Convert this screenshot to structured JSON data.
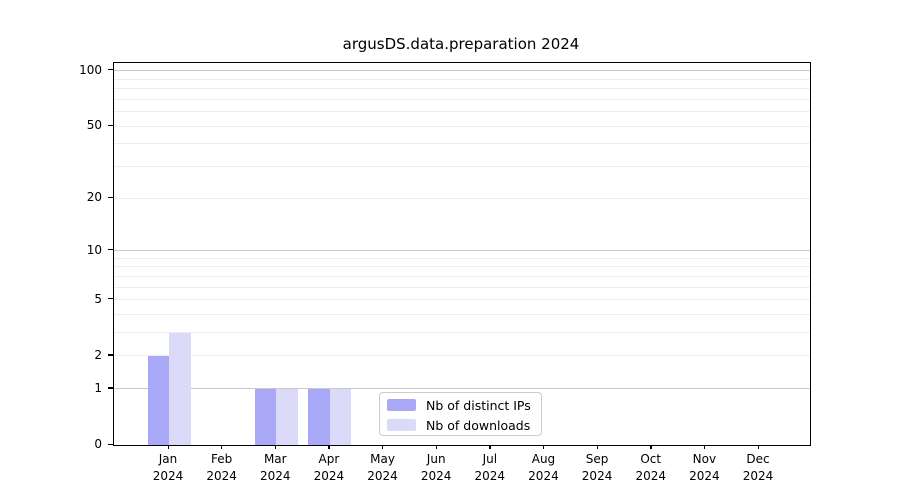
{
  "title": "argusDS.data.preparation 2024",
  "colors": {
    "series_ips": "#a9a9f8",
    "series_downloads": "#dbdbf9",
    "grid_major": "#c9c9c9",
    "grid_minor": "#ededed",
    "frame": "#000000",
    "legend_border": "#cccccc"
  },
  "chart_data": {
    "type": "bar",
    "title": "argusDS.data.preparation 2024",
    "x": [
      {
        "month": "Jan",
        "year": "2024"
      },
      {
        "month": "Feb",
        "year": "2024"
      },
      {
        "month": "Mar",
        "year": "2024"
      },
      {
        "month": "Apr",
        "year": "2024"
      },
      {
        "month": "May",
        "year": "2024"
      },
      {
        "month": "Jun",
        "year": "2024"
      },
      {
        "month": "Jul",
        "year": "2024"
      },
      {
        "month": "Aug",
        "year": "2024"
      },
      {
        "month": "Sep",
        "year": "2024"
      },
      {
        "month": "Oct",
        "year": "2024"
      },
      {
        "month": "Nov",
        "year": "2024"
      },
      {
        "month": "Dec",
        "year": "2024"
      }
    ],
    "series": [
      {
        "name": "Nb of distinct IPs",
        "color": "#a9a9f8",
        "values": [
          2,
          0,
          1,
          1,
          0,
          0,
          0,
          0,
          0,
          0,
          0,
          0
        ]
      },
      {
        "name": "Nb of downloads",
        "color": "#dbdbf9",
        "values": [
          3,
          0,
          1,
          1,
          0,
          0,
          0,
          0,
          0,
          0,
          0,
          0
        ]
      }
    ],
    "yscale": "log1p",
    "ylim": [
      0,
      110
    ],
    "y_tick_labels": [
      0,
      1,
      2,
      5,
      10,
      20,
      50,
      100
    ],
    "grid_major_values": [
      1,
      10,
      100
    ],
    "grid_minor_values": [
      2,
      3,
      4,
      5,
      6,
      7,
      8,
      9,
      20,
      30,
      40,
      50,
      60,
      70,
      80,
      90
    ],
    "grid": "on",
    "legend_position": "inside lower-center",
    "xlabel": "",
    "ylabel": ""
  }
}
